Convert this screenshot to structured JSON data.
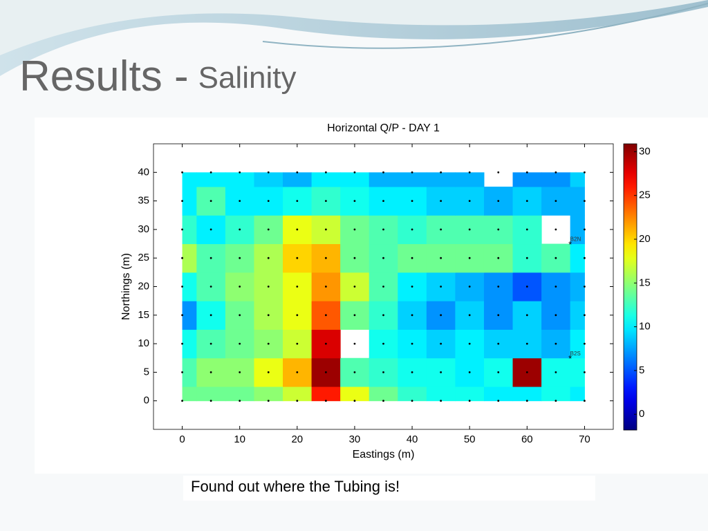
{
  "slide": {
    "title": "Results -",
    "title_emphasis": "Salinity",
    "caption": "Found out where the Tubing is!"
  },
  "chart_data": {
    "type": "contour",
    "title": "Horizontal Q/P - DAY 1",
    "x_label": "Eastings (m)",
    "y_label": "Northings (m)",
    "x": [
      0,
      5,
      10,
      15,
      20,
      25,
      30,
      35,
      40,
      45,
      50,
      55,
      60,
      65,
      70
    ],
    "y": [
      0,
      5,
      10,
      15,
      20,
      25,
      30,
      35,
      40
    ],
    "z": [
      [
        14,
        14,
        14,
        15,
        17,
        26,
        18,
        14,
        12,
        11,
        11,
        10,
        10,
        11,
        10
      ],
      [
        13,
        15,
        15,
        18,
        21,
        30,
        13,
        12,
        11,
        11,
        10,
        11,
        30,
        11,
        11
      ],
      [
        11,
        13,
        14,
        15,
        17,
        28,
        null,
        11,
        10,
        9,
        10,
        9,
        9,
        8,
        10
      ],
      [
        7,
        11,
        14,
        16,
        18,
        24,
        14,
        12,
        9,
        7,
        9,
        7,
        9,
        7,
        9
      ],
      [
        11,
        13,
        15,
        16,
        18,
        22,
        17,
        13,
        10,
        9,
        8,
        7,
        5,
        7,
        8
      ],
      [
        16,
        13,
        14,
        16,
        20,
        21,
        14,
        13,
        14,
        14,
        14,
        14,
        12,
        13,
        10
      ],
      [
        12,
        10,
        12,
        14,
        18,
        17,
        14,
        13,
        12,
        13,
        13,
        13,
        12,
        null,
        8
      ],
      [
        10,
        13,
        10,
        10,
        11,
        12,
        11,
        10,
        10,
        9,
        9,
        8,
        9,
        8,
        8
      ],
      [
        10,
        10,
        10,
        9,
        8,
        10,
        10,
        8,
        8,
        8,
        8,
        null,
        7,
        7,
        9
      ]
    ],
    "xlim": [
      -5,
      75
    ],
    "ylim": [
      -5,
      45
    ],
    "xticks": [
      0,
      10,
      20,
      30,
      40,
      50,
      60,
      70
    ],
    "yticks": [
      0,
      5,
      10,
      15,
      20,
      25,
      30,
      35,
      40
    ],
    "colormap": "jet",
    "clim": [
      -1.8,
      30.9
    ],
    "cticks": [
      0,
      5,
      10,
      15,
      20,
      25,
      30
    ],
    "annotations": [
      {
        "label": "B2N",
        "x": 67.5,
        "y": 27.5
      },
      {
        "label": "B2S",
        "x": 67.5,
        "y": 7.5
      }
    ]
  }
}
